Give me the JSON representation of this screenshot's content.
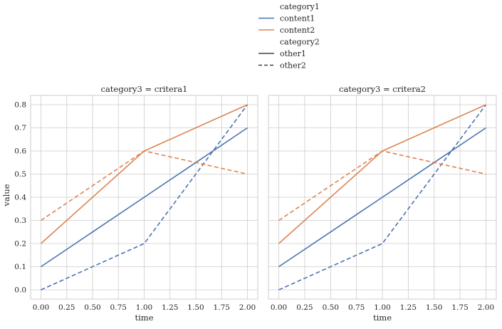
{
  "chart_data": {
    "type": "line",
    "legend": {
      "placement": "top-center",
      "sections": [
        {
          "title": "category1",
          "entries": [
            {
              "label": "content1",
              "color": "#4c72b0",
              "style": "solid"
            },
            {
              "label": "content2",
              "color": "#dd8452",
              "style": "solid"
            }
          ]
        },
        {
          "title": "category2",
          "entries": [
            {
              "label": "other1",
              "color": "#444444",
              "style": "solid"
            },
            {
              "label": "other2",
              "color": "#444444",
              "style": "dashed"
            }
          ]
        }
      ]
    },
    "xlabel": "time",
    "ylabel": "value",
    "xlim": [
      -0.1,
      2.1
    ],
    "ylim": [
      -0.04,
      0.84
    ],
    "x_ticks": [
      "0.00",
      "0.25",
      "0.50",
      "0.75",
      "1.00",
      "1.25",
      "1.50",
      "1.75",
      "2.00"
    ],
    "y_ticks": [
      "0.0",
      "0.1",
      "0.2",
      "0.3",
      "0.4",
      "0.5",
      "0.6",
      "0.7",
      "0.8"
    ],
    "grid": true,
    "panels": [
      {
        "title": "category3 = critera1",
        "series": [
          {
            "category1": "content1",
            "category2": "other1",
            "color": "#4c72b0",
            "style": "solid",
            "x": [
              0,
              1,
              2
            ],
            "y": [
              0.1,
              0.4,
              0.7
            ]
          },
          {
            "category1": "content1",
            "category2": "other2",
            "color": "#4c72b0",
            "style": "dashed",
            "x": [
              0,
              1,
              2
            ],
            "y": [
              0.0,
              0.2,
              0.8
            ]
          },
          {
            "category1": "content2",
            "category2": "other1",
            "color": "#dd8452",
            "style": "solid",
            "x": [
              0,
              1,
              2
            ],
            "y": [
              0.2,
              0.6,
              0.8
            ]
          },
          {
            "category1": "content2",
            "category2": "other2",
            "color": "#dd8452",
            "style": "dashed",
            "x": [
              0,
              1,
              2
            ],
            "y": [
              0.3,
              0.6,
              0.5
            ]
          }
        ]
      },
      {
        "title": "category3 = critera2",
        "series": [
          {
            "category1": "content1",
            "category2": "other1",
            "color": "#4c72b0",
            "style": "solid",
            "x": [
              0,
              1,
              2
            ],
            "y": [
              0.1,
              0.4,
              0.7
            ]
          },
          {
            "category1": "content1",
            "category2": "other2",
            "color": "#4c72b0",
            "style": "dashed",
            "x": [
              0,
              1,
              2
            ],
            "y": [
              0.0,
              0.2,
              0.8
            ]
          },
          {
            "category1": "content2",
            "category2": "other1",
            "color": "#dd8452",
            "style": "solid",
            "x": [
              0,
              1,
              2
            ],
            "y": [
              0.2,
              0.6,
              0.8
            ]
          },
          {
            "category1": "content2",
            "category2": "other2",
            "color": "#dd8452",
            "style": "dashed",
            "x": [
              0,
              1,
              2
            ],
            "y": [
              0.3,
              0.6,
              0.5
            ]
          }
        ]
      }
    ]
  }
}
